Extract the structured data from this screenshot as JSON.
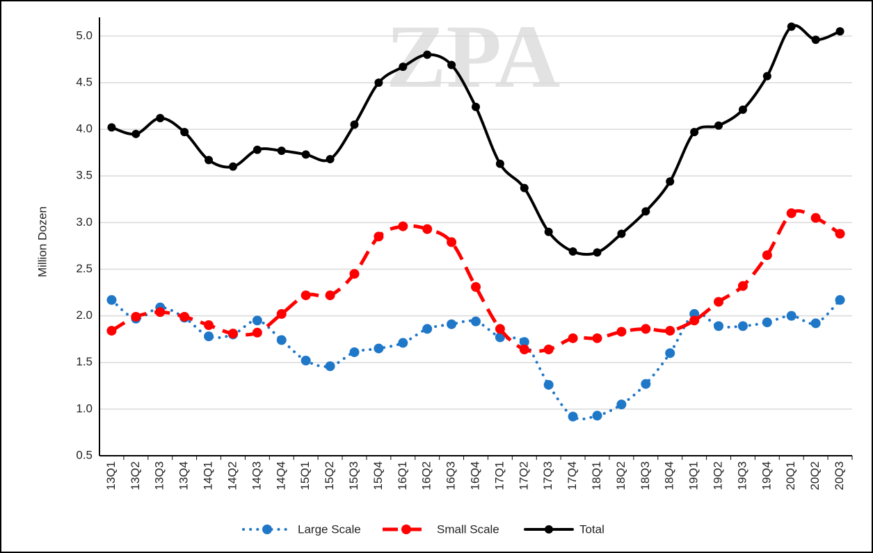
{
  "chart_data": {
    "type": "line",
    "watermark": "ZPA",
    "ylabel": "Million Dozen",
    "categories": [
      "13Q1",
      "13Q2",
      "13Q3",
      "13Q4",
      "14Q1",
      "14Q2",
      "14Q3",
      "14Q4",
      "15Q1",
      "15Q2",
      "15Q3",
      "15Q4",
      "16Q1",
      "16Q2",
      "16Q3",
      "16Q4",
      "17Q1",
      "17Q2",
      "17Q3",
      "17Q4",
      "18Q1",
      "18Q2",
      "18Q3",
      "18Q4",
      "19Q1",
      "19Q2",
      "19Q3",
      "19Q4",
      "20Q1",
      "20Q2",
      "20Q3"
    ],
    "series": [
      {
        "name": "Large Scale",
        "color": "#1f77c8",
        "style": "dotted",
        "values": [
          2.17,
          1.97,
          2.09,
          1.98,
          1.78,
          1.8,
          1.95,
          1.74,
          1.52,
          1.46,
          1.61,
          1.65,
          1.71,
          1.86,
          1.91,
          1.94,
          1.77,
          1.72,
          1.26,
          0.92,
          0.93,
          1.05,
          1.27,
          1.6,
          2.02,
          1.89,
          1.89,
          1.93,
          2.0,
          1.92,
          2.17
        ]
      },
      {
        "name": "Small Scale",
        "color": "#ff0000",
        "style": "dashed",
        "values": [
          1.84,
          1.99,
          2.04,
          1.99,
          1.9,
          1.81,
          1.82,
          2.02,
          2.22,
          2.22,
          2.45,
          2.85,
          2.96,
          2.93,
          2.79,
          2.31,
          1.86,
          1.64,
          1.64,
          1.76,
          1.76,
          1.83,
          1.86,
          1.84,
          1.95,
          2.15,
          2.32,
          2.65,
          3.1,
          3.05,
          2.88
        ]
      },
      {
        "name": "Total",
        "color": "#000000",
        "style": "solid",
        "values": [
          4.02,
          3.95,
          4.12,
          3.97,
          3.67,
          3.6,
          3.78,
          3.77,
          3.73,
          3.68,
          4.05,
          4.5,
          4.67,
          4.8,
          4.69,
          4.24,
          3.63,
          3.37,
          2.9,
          2.69,
          2.68,
          2.88,
          3.12,
          3.44,
          3.97,
          4.04,
          4.21,
          4.57,
          5.1,
          4.96,
          5.05
        ]
      }
    ],
    "ylim": [
      0.5,
      5.2
    ],
    "yticks": [
      0.5,
      {
        "value": 1,
        "label": "1.0"
      },
      1.5,
      {
        "value": 2,
        "label": "2.0"
      },
      2.5,
      {
        "value": 3,
        "label": "3.0"
      },
      3.5,
      {
        "value": 4,
        "label": "4.0"
      },
      4.5,
      {
        "value": 5,
        "label": "5.0"
      }
    ],
    "grid": true,
    "legend": "bottom"
  }
}
